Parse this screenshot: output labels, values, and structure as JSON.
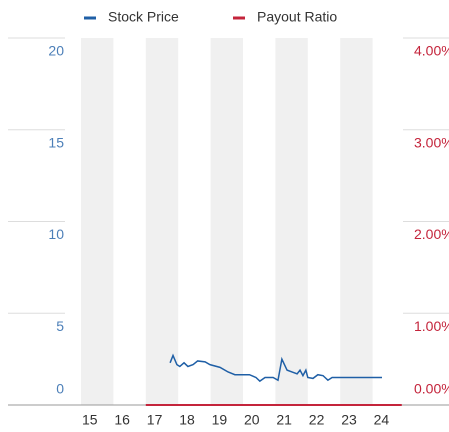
{
  "chart_data": {
    "type": "line",
    "x_band_shading": true,
    "series": [
      {
        "name": "Stock Price",
        "color": "#1f5fa6",
        "axis": "y",
        "x": [
          17.75,
          17.84,
          17.96,
          18.05,
          18.18,
          18.3,
          18.46,
          18.6,
          18.83,
          18.98,
          19.29,
          19.54,
          19.75,
          20.2,
          20.4,
          20.52,
          20.68,
          20.93,
          21.08,
          21.2,
          21.36,
          21.51,
          21.67,
          21.76,
          21.85,
          21.94,
          22.0,
          22.16,
          22.31,
          22.47,
          22.62,
          22.75,
          22.99,
          24.29
        ],
        "values": [
          2.3,
          2.7,
          2.2,
          2.1,
          2.3,
          2.1,
          2.2,
          2.4,
          2.35,
          2.2,
          2.05,
          1.8,
          1.65,
          1.65,
          1.5,
          1.3,
          1.5,
          1.5,
          1.35,
          2.5,
          1.9,
          1.8,
          1.7,
          1.9,
          1.6,
          1.9,
          1.5,
          1.45,
          1.65,
          1.6,
          1.35,
          1.5,
          1.5,
          1.5
        ]
      },
      {
        "name": "Payout Ratio",
        "color": "#c4243b",
        "axis": "y2",
        "x": [
          17,
          24.9
        ],
        "values": [
          0,
          0
        ]
      }
    ],
    "xlim": [
      15,
      25
    ],
    "xticks": [
      15,
      16,
      17,
      18,
      19,
      20,
      21,
      22,
      23,
      24
    ],
    "ylim": [
      0,
      20
    ],
    "yticks": [
      0,
      5,
      10,
      15,
      20
    ],
    "y2lim": [
      0,
      4
    ],
    "y2ticks": [
      {
        "value": 0,
        "label": "0.00%"
      },
      {
        "value": 1,
        "label": "1.00%"
      },
      {
        "value": 2,
        "label": "2.00%"
      },
      {
        "value": 3,
        "label": "3.00%"
      },
      {
        "value": 4,
        "label": "4.00%"
      }
    ],
    "legend": "top",
    "grid": true
  }
}
